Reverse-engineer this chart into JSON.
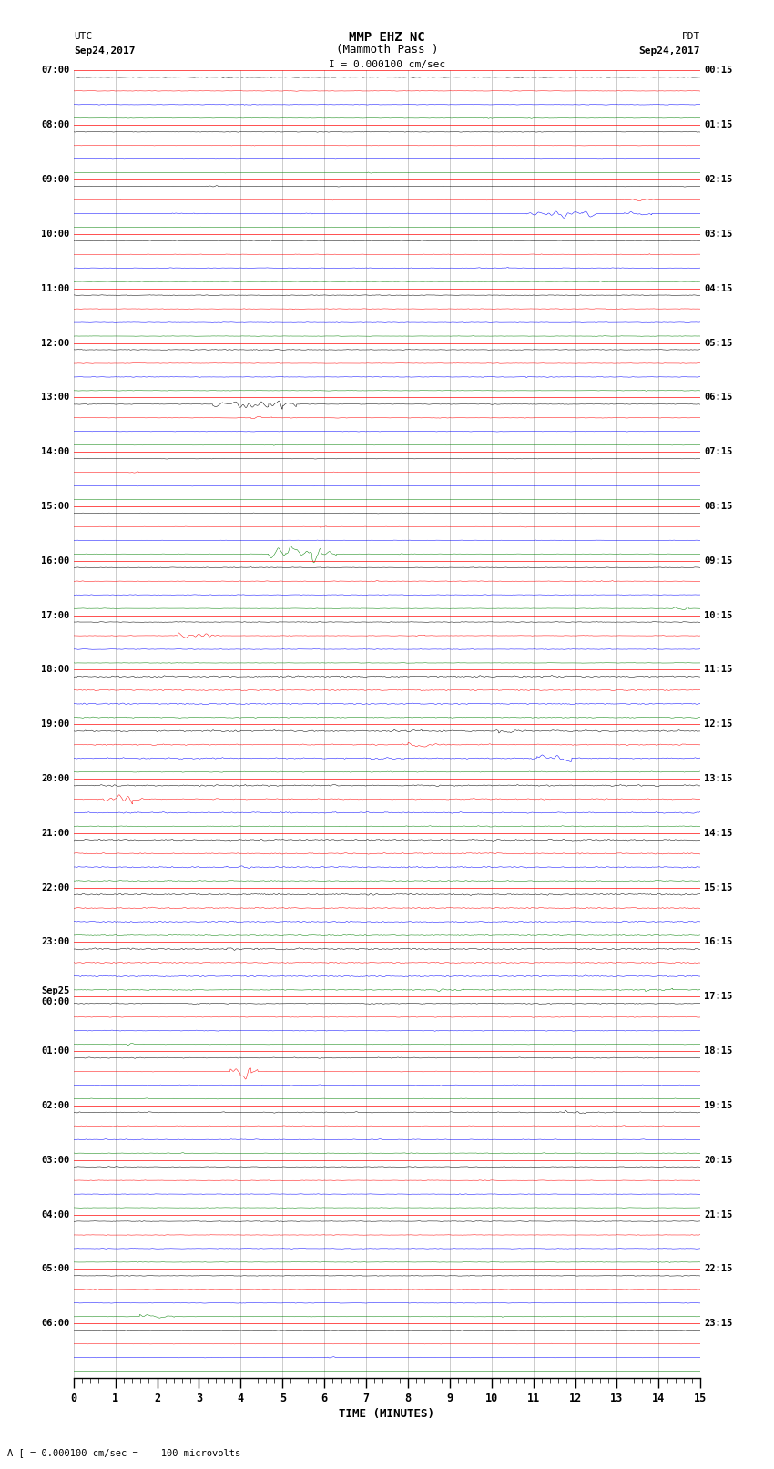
{
  "title_line1": "MMP EHZ NC",
  "title_line2": "(Mammoth Pass )",
  "scale_text": "I = 0.000100 cm/sec",
  "left_header_line1": "UTC",
  "left_header_line2": "Sep24,2017",
  "right_header_line1": "PDT",
  "right_header_line2": "Sep24,2017",
  "xlabel": "TIME (MINUTES)",
  "bottom_note": "A [ = 0.000100 cm/sec =    100 microvolts",
  "left_labels": [
    [
      "07:00",
      null
    ],
    [
      "08:00",
      null
    ],
    [
      "09:00",
      null
    ],
    [
      "10:00",
      null
    ],
    [
      "11:00",
      null
    ],
    [
      "12:00",
      null
    ],
    [
      "13:00",
      null
    ],
    [
      "14:00",
      null
    ],
    [
      "15:00",
      null
    ],
    [
      "16:00",
      null
    ],
    [
      "17:00",
      null
    ],
    [
      "18:00",
      null
    ],
    [
      "19:00",
      null
    ],
    [
      "20:00",
      null
    ],
    [
      "21:00",
      null
    ],
    [
      "22:00",
      null
    ],
    [
      "23:00",
      null
    ],
    [
      "Sep25\n00:00",
      null
    ],
    [
      "01:00",
      null
    ],
    [
      "02:00",
      null
    ],
    [
      "03:00",
      null
    ],
    [
      "04:00",
      null
    ],
    [
      "05:00",
      null
    ],
    [
      "06:00",
      null
    ]
  ],
  "right_labels": [
    "00:15",
    "01:15",
    "02:15",
    "03:15",
    "04:15",
    "05:15",
    "06:15",
    "07:15",
    "08:15",
    "09:15",
    "10:15",
    "11:15",
    "12:15",
    "13:15",
    "14:15",
    "15:15",
    "16:15",
    "17:15",
    "18:15",
    "19:15",
    "20:15",
    "21:15",
    "22:15",
    "23:15"
  ],
  "trace_colors": [
    "black",
    "red",
    "blue",
    "green"
  ],
  "background_color": "white",
  "grid_color": "#888888",
  "num_rows": 96,
  "xmin": 0,
  "xmax": 15,
  "xticks": [
    0,
    1,
    2,
    3,
    4,
    5,
    6,
    7,
    8,
    9,
    10,
    11,
    12,
    13,
    14,
    15
  ]
}
